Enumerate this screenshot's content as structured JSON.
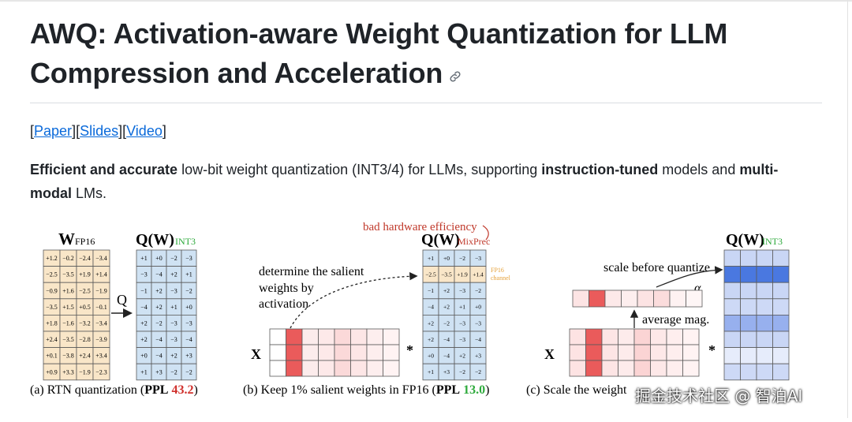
{
  "title": "AWQ: Activation-aware Weight Quantization for LLM Compression and Acceleration",
  "link_icon": "link-icon",
  "links": {
    "open": "[",
    "paper": "Paper",
    "sep1": "][",
    "slides": "Slides",
    "sep2": "][",
    "video": "Video",
    "close": "]"
  },
  "description": {
    "b1": "Efficient and accurate",
    "t1": " low-bit weight quantization (INT3/4) for LLMs, supporting ",
    "b2": "instruction-tuned",
    "t2": " models and ",
    "b3": "multi-modal",
    "t3": " LMs."
  },
  "figure": {
    "panel_a": {
      "w_label": "W",
      "w_sub": "FP16",
      "q_label": "Q(W)",
      "q_sub": "INT3",
      "arrow_label": "Q",
      "fp16_matrix": [
        [
          "+1.2",
          "−0.2",
          "−2.4",
          "−3.4"
        ],
        [
          "−2.5",
          "−3.5",
          "+1.9",
          "+1.4"
        ],
        [
          "−0.9",
          "+1.6",
          "−2.5",
          "−1.9"
        ],
        [
          "−3.5",
          "+1.5",
          "+0.5",
          "−0.1"
        ],
        [
          "+1.8",
          "−1.6",
          "−3.2",
          "−3.4"
        ],
        [
          "+2.4",
          "−3.5",
          "−2.8",
          "−3.9"
        ],
        [
          "+0.1",
          "−3.8",
          "+2.4",
          "+3.4"
        ],
        [
          "+0.9",
          "+3.3",
          "−1.9",
          "−2.3"
        ]
      ],
      "int3_matrix": [
        [
          "+1",
          "+0",
          "−2",
          "−3"
        ],
        [
          "−3",
          "−4",
          "+2",
          "+1"
        ],
        [
          "−1",
          "+2",
          "−3",
          "−2"
        ],
        [
          "−4",
          "+2",
          "+1",
          "+0"
        ],
        [
          "+2",
          "−2",
          "−3",
          "−3"
        ],
        [
          "+2",
          "−4",
          "−3",
          "−4"
        ],
        [
          "+0",
          "−4",
          "+2",
          "+3"
        ],
        [
          "+1",
          "+3",
          "−2",
          "−2"
        ]
      ],
      "caption": "(a) RTN quantization (",
      "ppl_label": "PPL",
      "ppl_value": "43.2",
      "caption_end": ")"
    },
    "panel_b": {
      "bad_hw": "bad hardware efficiency",
      "q_label": "Q(W)",
      "q_sub": "MixPrec",
      "annotation_lines": [
        "determine the salient",
        "weights by",
        "activation"
      ],
      "fp16_tag_lines": [
        "FP16",
        "channel"
      ],
      "x_label": "X",
      "star": "*",
      "matrix": [
        [
          "+1",
          "+0",
          "−2",
          "−3"
        ],
        [
          "−2.5",
          "−3.5",
          "+1.9",
          "+1.4"
        ],
        [
          "−1",
          "+2",
          "−3",
          "−2"
        ],
        [
          "−4",
          "+2",
          "+1",
          "+0"
        ],
        [
          "+2",
          "−2",
          "−3",
          "−3"
        ],
        [
          "+2",
          "−4",
          "−3",
          "−4"
        ],
        [
          "+0",
          "−4",
          "+2",
          "+3"
        ],
        [
          "+1",
          "+3",
          "−2",
          "−2"
        ]
      ],
      "caption": "(b) Keep 1% salient weights in FP16 (",
      "ppl_label": "PPL",
      "ppl_value": "13.0",
      "caption_end": ")"
    },
    "panel_c": {
      "q_label": "Q(W)",
      "q_sub": "INT3",
      "scale_note": "scale before quantize",
      "alpha": "α",
      "avg_mag": "average mag.",
      "x_label": "X",
      "star": "*",
      "caption": "(c) Scale the weight"
    },
    "colors": {
      "fp16_cell": "#f9e6c8",
      "int3_cell": "#cfe2f3",
      "grid_line": "#5a5a5a",
      "ppl_red": "#d0312d",
      "ppl_green": "#2eaa3c",
      "annotation_red": "#c0392b",
      "salient_red": "#ea5b5b",
      "scaled_blue": "#4a78e0"
    }
  },
  "watermark": "掘金技术社区 @ 智泊AI"
}
